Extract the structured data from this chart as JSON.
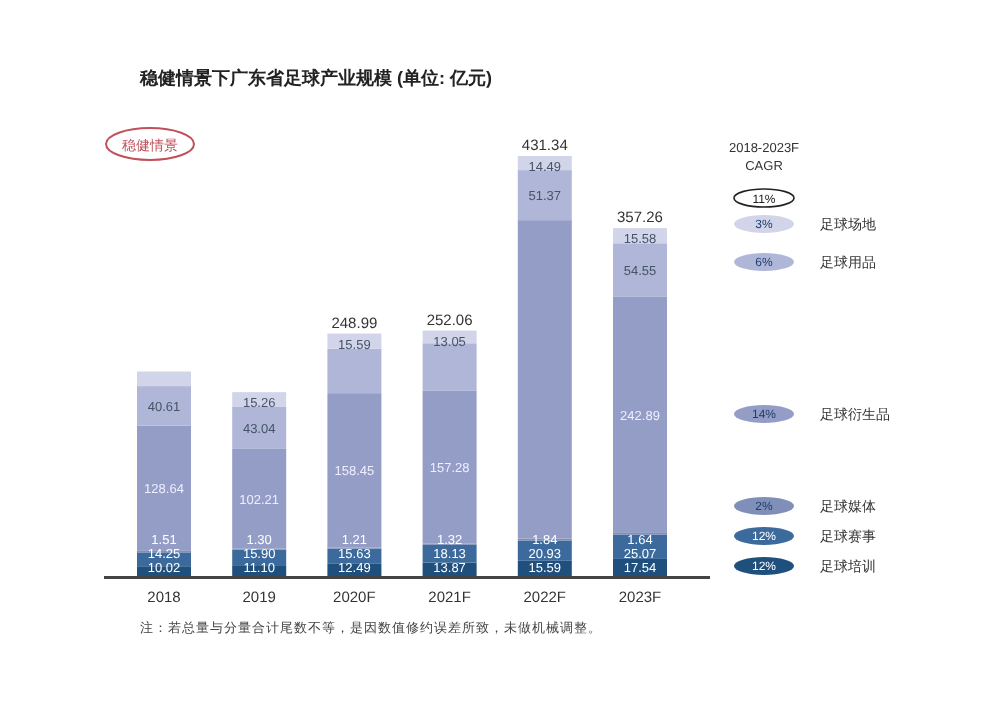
{
  "chart_data": {
    "type": "bar",
    "stacked": true,
    "title": "稳健情景下广东省足球产业规模 (单位: 亿元)",
    "legend_title": "2018-2023F CAGR",
    "legend": "right",
    "categories": [
      "2018",
      "2019",
      "2020F",
      "2021F",
      "2022F",
      "2023F"
    ],
    "series": [
      {
        "name": "足球培训",
        "color": "#1f4f7d",
        "values": [
          10.02,
          11.1,
          12.49,
          13.87,
          15.59,
          17.54
        ],
        "value_labels": [
          "10.02",
          "11.10",
          "12.49",
          "13.87",
          "15.59",
          "17.54"
        ]
      },
      {
        "name": "足球赛事",
        "color": "#3d6a9c",
        "values": [
          14.25,
          15.9,
          15.63,
          18.13,
          20.93,
          25.07
        ],
        "value_labels": [
          "14.25",
          "15.90",
          "15.63",
          "18.13",
          "20.93",
          "25.07"
        ]
      },
      {
        "name": "足球媒体",
        "color": "#7f8fb8",
        "values": [
          1.51,
          1.3,
          1.21,
          1.32,
          1.84,
          1.64
        ],
        "value_labels": [
          "1.51",
          "1.30",
          "1.21",
          "1.32",
          "1.84",
          "1.64"
        ]
      },
      {
        "name": "足球衍生品",
        "color": "#949dc6",
        "values": [
          128.64,
          102.21,
          158.45,
          157.28,
          327.12,
          242.89
        ],
        "value_labels": [
          "128.64",
          "102.21",
          "158.45",
          "157.28",
          null,
          "242.89"
        ]
      },
      {
        "name": "足球用品",
        "color": "#b0b6d8",
        "values": [
          40.61,
          43.04,
          45.62,
          48.41,
          51.37,
          54.55
        ],
        "value_labels": [
          "40.61",
          "43.04",
          null,
          null,
          "51.37",
          "54.55"
        ]
      },
      {
        "name": "足球场地",
        "color": "#d2d5ea",
        "values": [
          15,
          15.26,
          15.59,
          13.05,
          14.49,
          15.58
        ],
        "value_labels": [
          null,
          "15.26",
          "15.59",
          "13.05",
          "14.49",
          "15.58"
        ]
      }
    ],
    "totals": [
      null,
      null,
      "248.99",
      "252.06",
      "431.34",
      "357.26"
    ],
    "annotations": [
      "稳健情景",
      "11%",
      "12%",
      "12%",
      "2%",
      "14%",
      "6%",
      "3%",
      "注：若总量与分量合计尾数不等，是因数值修约误差所致，未做机械调整。"
    ]
  }
}
